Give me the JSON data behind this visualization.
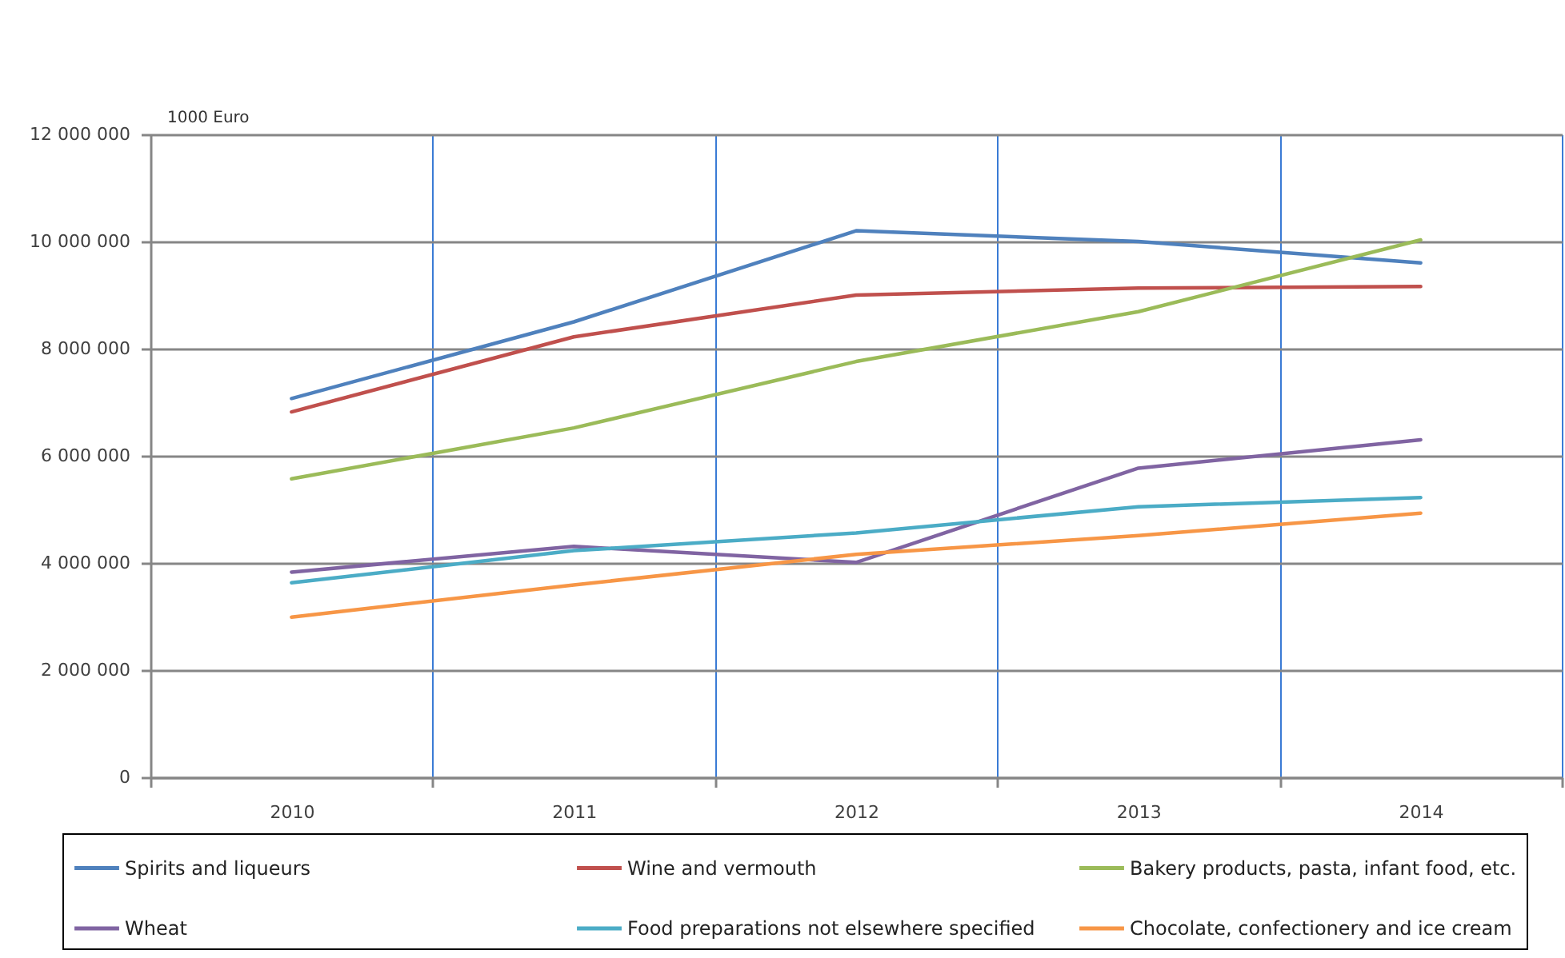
{
  "chart_data": {
    "type": "line",
    "ylabel": "1000 Euro",
    "categories": [
      "2010",
      "2011",
      "2012",
      "2013",
      "2014"
    ],
    "series": [
      {
        "name": "Spirits and liqueurs",
        "color": "#4f81bd",
        "values": [
          7070000,
          8500000,
          10200000,
          10000000,
          9600000
        ]
      },
      {
        "name": "Wine and vermouth",
        "color": "#c0504d",
        "values": [
          6820000,
          8220000,
          9000000,
          9130000,
          9160000
        ]
      },
      {
        "name": "Bakery products, pasta, infant food, etc.",
        "color": "#9bbb59",
        "values": [
          5570000,
          6520000,
          7760000,
          8690000,
          10030000
        ]
      },
      {
        "name": "Wheat",
        "color": "#8064a2",
        "values": [
          3830000,
          4310000,
          4010000,
          5770000,
          6300000
        ]
      },
      {
        "name": "Food preparations not elsewhere specified",
        "color": "#4bacc6",
        "values": [
          3630000,
          4230000,
          4560000,
          5050000,
          5220000
        ]
      },
      {
        "name": "Chocolate, confectionery and ice cream",
        "color": "#f79646",
        "values": [
          2990000,
          3590000,
          4160000,
          4510000,
          4930000
        ]
      }
    ],
    "ylim": [
      0,
      12000000
    ],
    "yticks": [
      0,
      {
        "value": 2000000,
        "label": "2 000 000"
      },
      {
        "value": 4000000,
        "label": "4 000 000"
      },
      {
        "value": 6000000,
        "label": "6 000 000"
      },
      {
        "value": 8000000,
        "label": "8 000 000"
      },
      {
        "value": 10000000,
        "label": "10 000 000"
      },
      {
        "value": 12000000,
        "label": "12 000 000"
      }
    ],
    "grid": true,
    "legend": "bottom",
    "line_style": "solid"
  }
}
